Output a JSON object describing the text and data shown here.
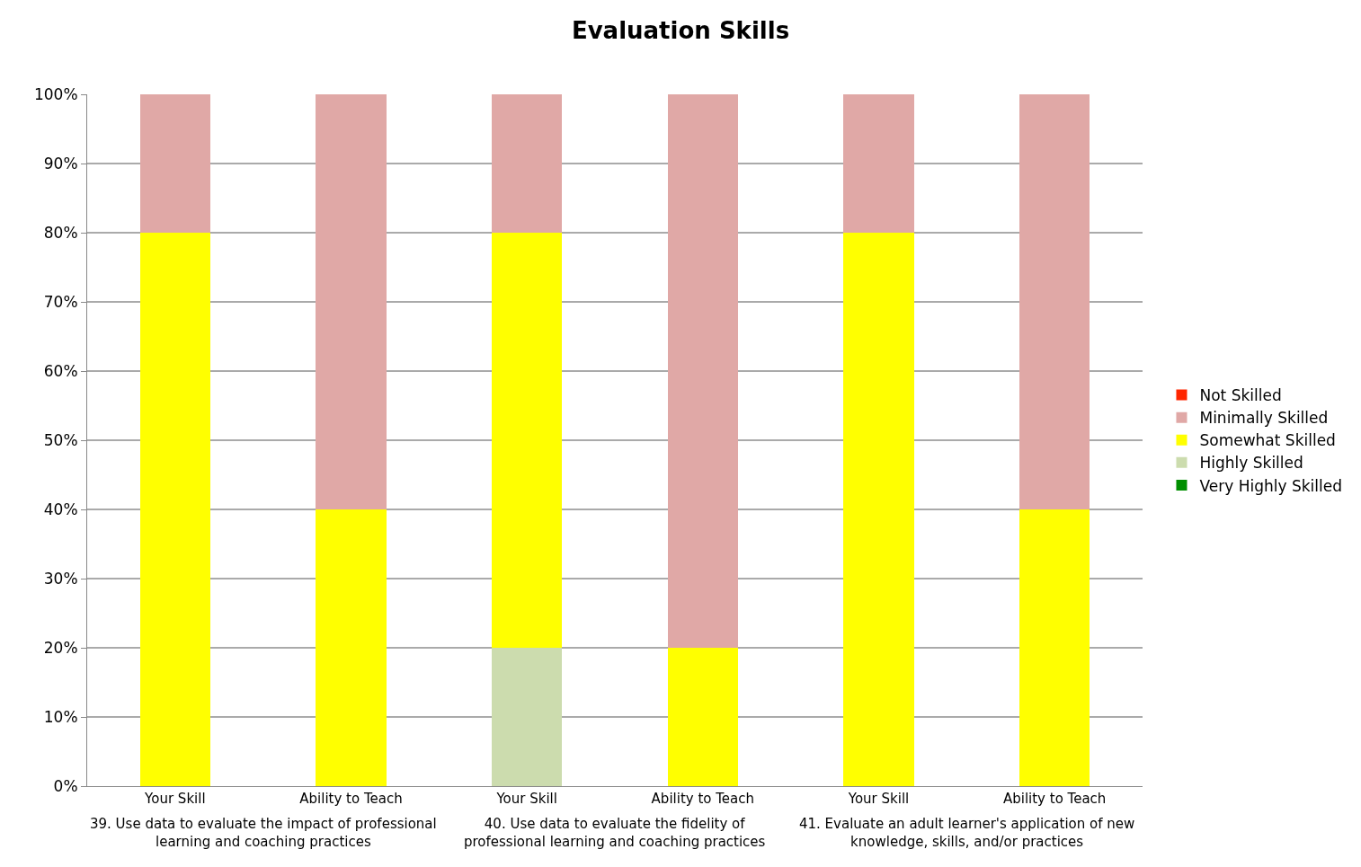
{
  "chart_data": {
    "type": "bar",
    "title": "Evaluation Skills",
    "stacked": true,
    "categories": [
      "Your Skill",
      "Ability to Teach",
      "Your Skill",
      "Ability to Teach",
      "Your Skill",
      "Ability to Teach"
    ],
    "series": [
      {
        "name": "Very Highly Skilled",
        "color": "#008f00",
        "values": [
          0,
          0,
          0,
          0,
          0,
          0
        ]
      },
      {
        "name": "Highly Skilled",
        "color": "#ccdcae",
        "values": [
          0,
          0,
          20,
          0,
          0,
          0
        ]
      },
      {
        "name": "Somewhat Skilled",
        "color": "#ffff00",
        "values": [
          80,
          40,
          60,
          20,
          80,
          40
        ]
      },
      {
        "name": "Minimally Skilled",
        "color": "#e0a8a6",
        "values": [
          20,
          60,
          20,
          80,
          20,
          60
        ]
      },
      {
        "name": "Not Skilled",
        "color": "#ff2600",
        "values": [
          0,
          0,
          0,
          0,
          0,
          0
        ]
      }
    ],
    "ylim": [
      0,
      100
    ],
    "yticks": [
      {
        "value": 0,
        "label": "0%"
      },
      {
        "value": 10,
        "label": "10%"
      },
      {
        "value": 20,
        "label": "20%"
      },
      {
        "value": 30,
        "label": "30%"
      },
      {
        "value": 40,
        "label": "40%"
      },
      {
        "value": 50,
        "label": "50%"
      },
      {
        "value": 60,
        "label": "60%"
      },
      {
        "value": 70,
        "label": "70%"
      },
      {
        "value": 80,
        "label": "80%"
      },
      {
        "value": 90,
        "label": "90%"
      },
      {
        "value": 100,
        "label": "100%"
      }
    ],
    "grid": "y",
    "legend": "right",
    "annotations": [
      "39. Use data to evaluate the impact of professional learning and coaching practices",
      "40. Use data to evaluate the fidelity of professional learning and coaching practices",
      "41. Evaluate an adult learner's application of new knowledge, skills, and/or practices"
    ]
  }
}
